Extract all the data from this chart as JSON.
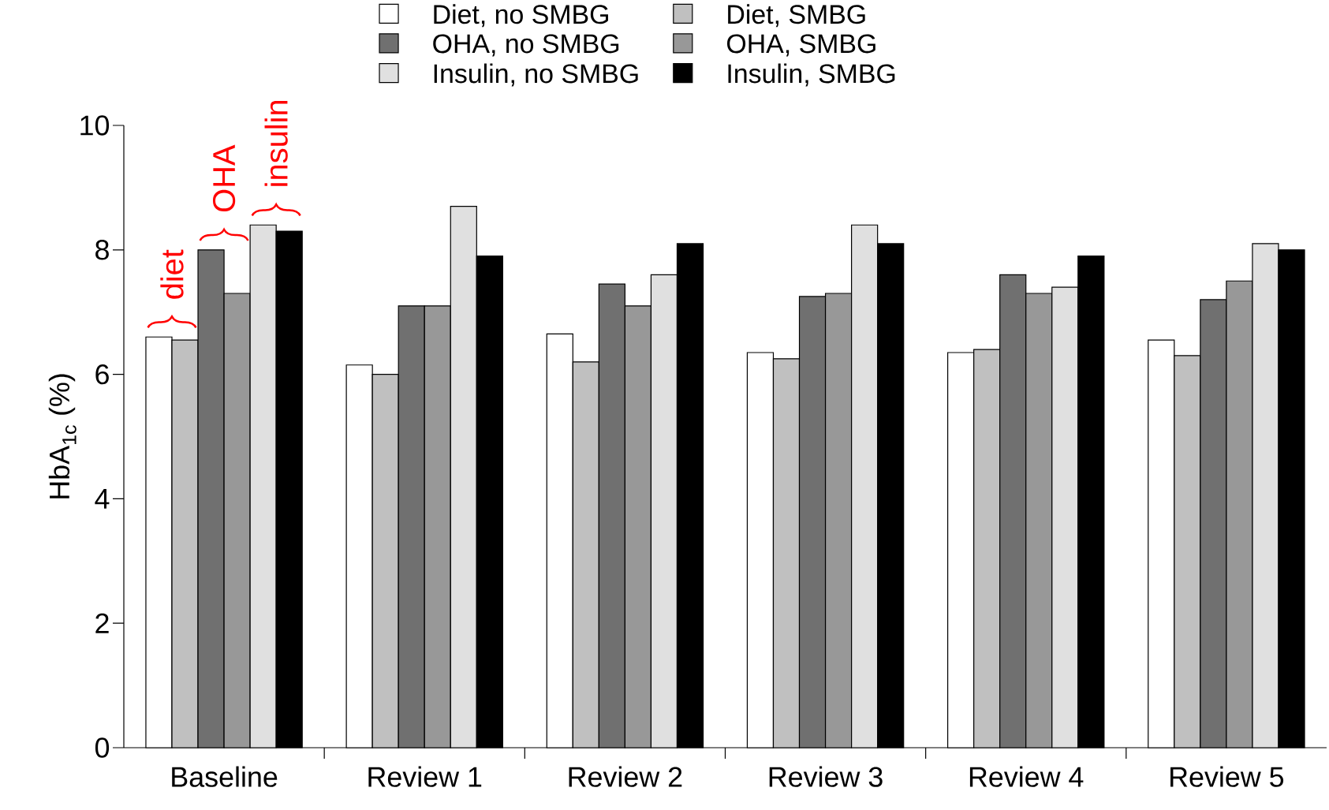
{
  "chart_data": {
    "type": "bar",
    "ylabel": "HbA$_{1c}$ (%)",
    "categories": [
      "Baseline",
      "Review 1",
      "Review 2",
      "Review 3",
      "Review 4",
      "Review 5"
    ],
    "series": [
      {
        "name": "Diet, no SMBG",
        "color": "#ffffff",
        "values": [
          6.6,
          6.15,
          6.65,
          6.35,
          6.35,
          6.55
        ]
      },
      {
        "name": "Diet, SMBG",
        "color": "#c0c0c0",
        "values": [
          6.55,
          6.0,
          6.2,
          6.25,
          6.4,
          6.3
        ]
      },
      {
        "name": "OHA, no SMBG",
        "color": "#707070",
        "values": [
          8.0,
          7.1,
          7.45,
          7.25,
          7.6,
          7.2
        ]
      },
      {
        "name": "OHA, SMBG",
        "color": "#989898",
        "values": [
          7.3,
          7.1,
          7.1,
          7.3,
          7.3,
          7.5
        ]
      },
      {
        "name": "Insulin, no SMBG",
        "color": "#e0e0e0",
        "values": [
          8.4,
          8.7,
          7.6,
          8.4,
          7.4,
          8.1
        ]
      },
      {
        "name": "Insulin, SMBG",
        "color": "#000000",
        "values": [
          8.3,
          7.9,
          8.1,
          8.1,
          7.9,
          8.0
        ]
      }
    ],
    "ylim": [
      0,
      10
    ],
    "yticks": [
      0,
      2,
      4,
      6,
      8,
      10
    ],
    "grid": false,
    "legend": "top",
    "annotations": [
      {
        "text": "diet",
        "x": "Baseline",
        "y": 6.6
      },
      {
        "text": "OHA",
        "x": "Baseline",
        "y": 8.0
      },
      "insulin"
    ]
  }
}
